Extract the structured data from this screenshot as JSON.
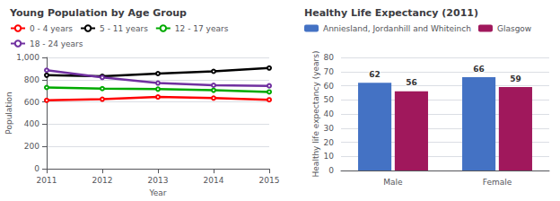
{
  "chart_data": [
    {
      "type": "line",
      "title": "Young Population by Age Group",
      "xlabel": "Year",
      "ylabel": "Population",
      "x": [
        2011,
        2012,
        2013,
        2014,
        2015
      ],
      "series": [
        {
          "name": "0 - 4 years",
          "color": "#FF0000",
          "values": [
            615,
            625,
            645,
            635,
            620
          ]
        },
        {
          "name": "5 - 11 years",
          "color": "#000000",
          "values": [
            840,
            830,
            855,
            875,
            905
          ]
        },
        {
          "name": "12 - 17 years",
          "color": "#00AA00",
          "values": [
            730,
            720,
            715,
            705,
            690
          ]
        },
        {
          "name": "18 - 24 years",
          "color": "#7030A0",
          "values": [
            885,
            820,
            770,
            750,
            745
          ]
        }
      ],
      "xlim": [
        2011,
        2015
      ],
      "xticks": [
        2011,
        2012,
        2013,
        2014,
        2015
      ],
      "ylim": [
        0,
        1000
      ],
      "yticks": [
        0,
        200,
        400,
        600,
        800,
        {
          "value": 1000,
          "label": "1,000"
        }
      ],
      "grid": true,
      "legend": "top"
    },
    {
      "type": "bar",
      "title": "Healthy Life Expectancy (2011)",
      "ylabel": "Healthy life expectancy (years)",
      "categories": [
        "Male",
        "Female"
      ],
      "series": [
        {
          "name": "Anniesland, Jordanhill and Whiteinch",
          "color": "#4472C4",
          "values": [
            62,
            66
          ]
        },
        {
          "name": "Glasgow",
          "color": "#A0185C",
          "values": [
            56,
            59
          ]
        }
      ],
      "ylim": [
        0,
        80
      ],
      "yticks": [
        0,
        10,
        20,
        30,
        40,
        50,
        60,
        70,
        80
      ],
      "grid": true,
      "legend": "top",
      "data_labels": true
    }
  ]
}
